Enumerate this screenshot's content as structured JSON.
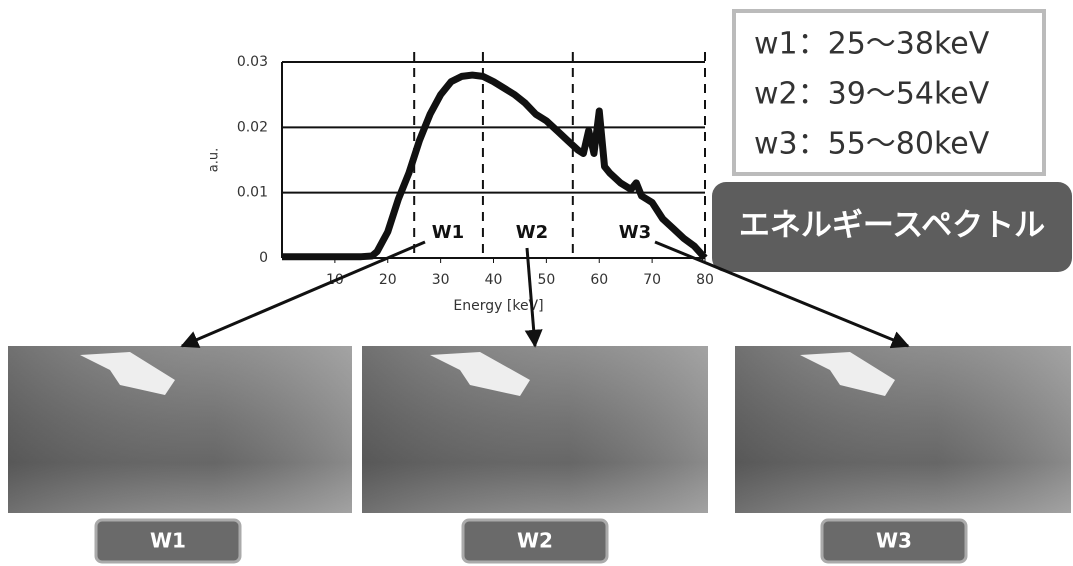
{
  "chart_data": {
    "type": "line",
    "ylabel": "a.u.",
    "xlabel": "Energy [keV]",
    "x": [
      0,
      5,
      10,
      15,
      17,
      18,
      20,
      22,
      24,
      26,
      28,
      30,
      32,
      34,
      36,
      38,
      40,
      42,
      44,
      46,
      48,
      50,
      52,
      54,
      56,
      57,
      58,
      59,
      60,
      61,
      62,
      64,
      66,
      67,
      68,
      69,
      70,
      72,
      74,
      76,
      78,
      80
    ],
    "series": [
      {
        "color": "#111111",
        "values": [
          0.0002,
          0.0002,
          0.0002,
          0.0002,
          0.0003,
          0.001,
          0.004,
          0.009,
          0.013,
          0.018,
          0.022,
          0.025,
          0.027,
          0.0278,
          0.028,
          0.0278,
          0.027,
          0.026,
          0.025,
          0.0237,
          0.022,
          0.021,
          0.0195,
          0.018,
          0.0165,
          0.016,
          0.0195,
          0.016,
          0.0225,
          0.014,
          0.013,
          0.0115,
          0.0105,
          0.0115,
          0.0095,
          0.009,
          0.0085,
          0.006,
          0.0045,
          0.003,
          0.0018,
          0
        ]
      }
    ],
    "xlim": [
      0,
      80
    ],
    "xticks": [
      10,
      20,
      30,
      40,
      50,
      60,
      70,
      80
    ],
    "ylim": [
      0,
      0.03
    ],
    "yticks": [
      0,
      0.01,
      0.02,
      0.03
    ],
    "grid": true,
    "vlines": [
      25,
      38,
      55,
      80
    ],
    "window_labels": [
      "W1",
      "W2",
      "W3"
    ]
  },
  "legend_box": {
    "lines": [
      "w1：25〜38keV",
      "w2：39〜54keV",
      "w3：55〜80keV"
    ]
  },
  "callout": "エネルギースペクトル",
  "images": [
    {
      "label": "W1"
    },
    {
      "label": "W2"
    },
    {
      "label": "W3"
    }
  ]
}
